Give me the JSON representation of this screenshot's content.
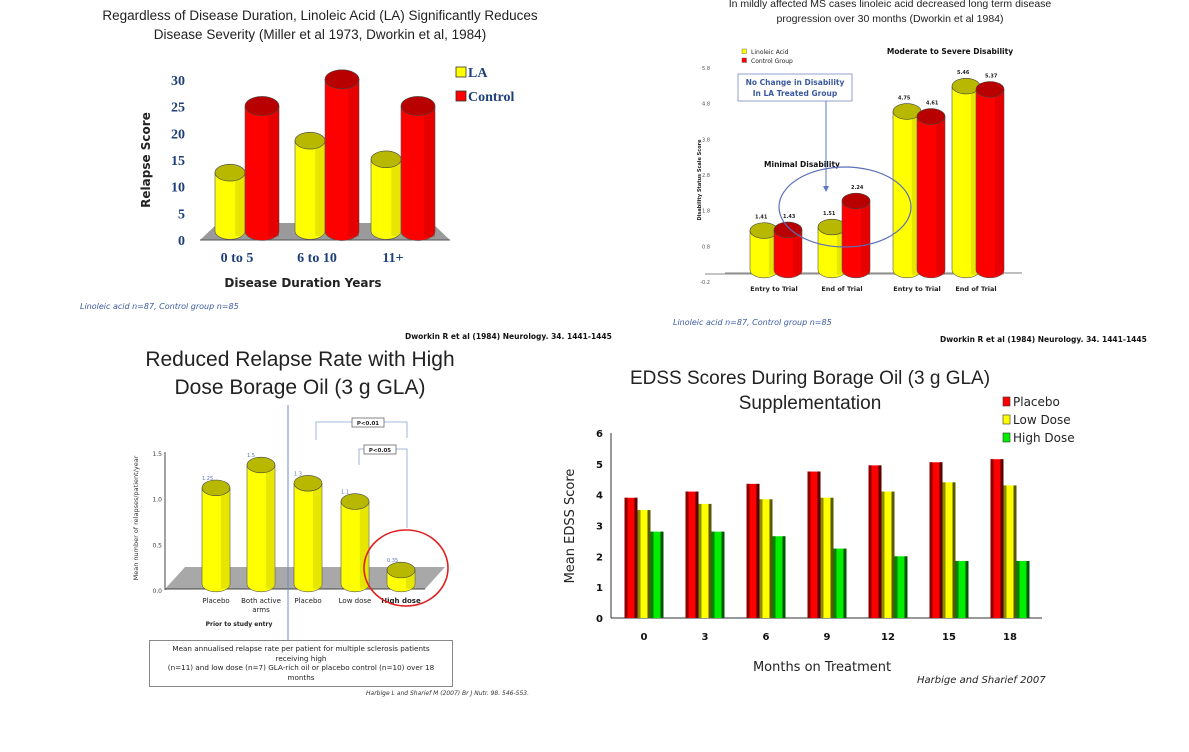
{
  "panels": {
    "top_left": {
      "title_line1": "Regardless of Disease Duration, Linoleic Acid (LA) Significantly Reduces",
      "title_line2": "Disease Severity (Miller et al 1973, Dworkin et al, 1984)",
      "footnote": "Linoleic acid n=87, Control group n=85",
      "reference": "Dworkin R et al (1984) Neurology. 34. 1441-1445"
    },
    "top_right": {
      "title_line1": "In mildly affected MS cases linoleic acid decreased long term disease",
      "title_line2": "progression over 30 months (Dworkin et al 1984)",
      "callout_line1": "No Change in Disability",
      "callout_line2": "In LA Treated Group",
      "group_label_minimal": "Minimal Disability",
      "group_label_moderate": "Moderate to Severe Disability",
      "footnote": "Linoleic acid n=87, Control group n=85",
      "reference": "Dworkin R et al (1984) Neurology. 34. 1441-1445"
    },
    "bottom_left": {
      "title_line1": "Reduced Relapse Rate with High",
      "title_line2": "Dose Borage Oil (3 g GLA)",
      "sig1": "P<0.01",
      "sig2": "P<0.05",
      "group_label": "Prior to study entry",
      "caption_line1": "Mean annualised relapse rate per patient for multiple sclerosis patients receiving high",
      "caption_line2": "(n=11) and low dose (n=7) GLA-rich oil or placebo control (n=10) over 18 months",
      "reference": "Harbige L and Sharief M (2007) Br J Nutr. 98. 546-553."
    },
    "bottom_right": {
      "title_line1": "EDSS Scores During Borage Oil (3 g GLA)",
      "title_line2": "Supplementation",
      "reference": "Harbige and Sharief 2007"
    }
  },
  "colors": {
    "yellow": "#ffff00",
    "red": "#ff0000",
    "green": "#00ee00",
    "axis_blue": "#1f3f7a",
    "callout_blue": "#3b5aa0"
  },
  "chart_data": [
    {
      "id": "relapse-by-duration",
      "type": "bar",
      "title": "Regardless of Disease Duration, Linoleic Acid (LA) Significantly Reduces Disease Severity",
      "xlabel": "Disease Duration Years",
      "ylabel": "Relapse Score",
      "categories": [
        "0 to 5",
        "6 to 10",
        "11+"
      ],
      "series": [
        {
          "name": "LA",
          "color": "#ffff00",
          "values": [
            13,
            19,
            15.5
          ]
        },
        {
          "name": "Control",
          "color": "#ff0000",
          "values": [
            25.5,
            30.5,
            25.5
          ]
        }
      ],
      "yticks": [
        "0",
        "5",
        "10",
        "15",
        "20",
        "25",
        "30"
      ],
      "ylim": [
        0,
        30
      ],
      "legend": "top-right"
    },
    {
      "id": "disability-progression",
      "type": "bar",
      "title": "In mildly affected MS cases linoleic acid decreased long term disease progression over 30 months",
      "xlabel": "",
      "ylabel": "Disability Status Scale Score",
      "categories": [
        "Entry to Trial",
        "End of Trial",
        "Entry to Trial",
        "End of Trial"
      ],
      "groups": [
        "Minimal Disability",
        "Minimal Disability",
        "Moderate to Severe Disability",
        "Moderate to Severe Disability"
      ],
      "series": [
        {
          "name": "Linoleic Acid",
          "color": "#ffff00",
          "values": [
            1.41,
            1.51,
            4.75,
            5.46
          ],
          "labels": [
            "1.41",
            "1.51",
            "4.75",
            "5.46"
          ]
        },
        {
          "name": "Control Group",
          "color": "#ff0000",
          "values": [
            1.43,
            2.24,
            4.61,
            5.37
          ],
          "labels": [
            "1.43",
            "2.24",
            "4.61",
            "5.37"
          ]
        }
      ],
      "yticks": [
        "-0.2",
        "0.8",
        "1.8",
        "2.8",
        "3.8",
        "4.8",
        "5.8"
      ],
      "ylim": [
        -0.2,
        5.8
      ],
      "legend": "top-left"
    },
    {
      "id": "relapse-rate-borage",
      "type": "bar",
      "title": "Reduced Relapse Rate with High Dose Borage Oil (3 g GLA)",
      "xlabel": "",
      "ylabel": "Mean number of relapses/patient/year",
      "categories": [
        "Placebo",
        "Both active arms",
        "Placebo",
        "Low dose",
        "High dose"
      ],
      "values": [
        1.25,
        1.5,
        1.3,
        1.1,
        0.35
      ],
      "labels": [
        "1.25",
        "1.5",
        "1.3",
        "1.1",
        "0.35"
      ],
      "yticks": [
        "0.0",
        "0.5",
        "1.0",
        "1.5"
      ],
      "ylim": [
        0,
        1.5
      ],
      "annotations": [
        "P<0.01 (Placebo vs High dose)",
        "P<0.05 (Low dose vs High dose)",
        "Prior to study entry"
      ]
    },
    {
      "id": "edss-scores",
      "type": "bar",
      "title": "EDSS Scores During Borage Oil (3 g GLA) Supplementation",
      "xlabel": "Months on Treatment",
      "ylabel": "Mean EDSS Score",
      "categories": [
        "0",
        "3",
        "6",
        "9",
        "12",
        "15",
        "18"
      ],
      "series": [
        {
          "name": "Placebo",
          "color": "#ff0000",
          "values": [
            3.9,
            4.1,
            4.35,
            4.75,
            4.95,
            5.05,
            5.15
          ]
        },
        {
          "name": "Low Dose",
          "color": "#ffff00",
          "values": [
            3.5,
            3.7,
            3.85,
            3.9,
            4.1,
            4.4,
            4.3
          ]
        },
        {
          "name": "High Dose",
          "color": "#00ee00",
          "values": [
            2.8,
            2.8,
            2.65,
            2.25,
            2.0,
            1.85,
            1.85
          ]
        }
      ],
      "yticks": [
        "0",
        "1",
        "2",
        "3",
        "4",
        "5",
        "6"
      ],
      "ylim": [
        0,
        6
      ],
      "legend": "top-right"
    }
  ]
}
